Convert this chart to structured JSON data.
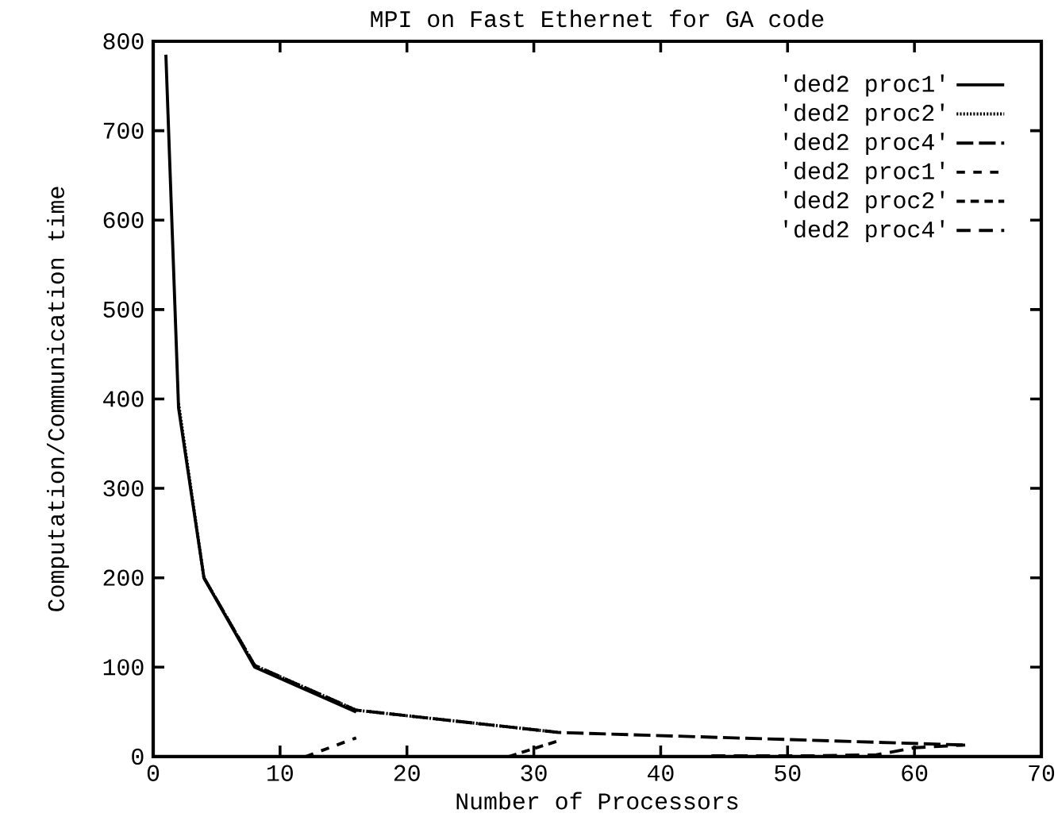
{
  "chart_data": {
    "type": "line",
    "title": "MPI on Fast Ethernet for GA code",
    "xlabel": "Number of Processors",
    "ylabel": "Computation/Communication time",
    "xlim": [
      0,
      70
    ],
    "xticks": [
      0,
      10,
      20,
      30,
      40,
      50,
      60,
      70
    ],
    "ylim": [
      0,
      800
    ],
    "yticks": [
      0,
      100,
      200,
      300,
      400,
      500,
      600,
      700,
      800
    ],
    "grid": false,
    "legend": "top right",
    "marker": "none",
    "series": [
      {
        "name": "'ded2 proc1'",
        "color": "#000000",
        "line_style": "solid",
        "x": [
          1,
          2,
          4,
          8,
          16
        ],
        "values": [
          785,
          390,
          200,
          100,
          50
        ]
      },
      {
        "name": "'ded2 proc2'",
        "color": "#000000",
        "line_style": "dotted",
        "x": [
          2,
          4,
          8,
          16,
          32
        ],
        "values": [
          395,
          200,
          102,
          52,
          27
        ]
      },
      {
        "name": "'ded2 proc4'",
        "color": "#000000",
        "line_style": "dashed",
        "x": [
          4,
          8,
          16,
          32,
          64
        ],
        "values": [
          200,
          102,
          52,
          27,
          13
        ]
      },
      {
        "name": "'ded2 proc1'",
        "color": "#000000",
        "line_style": "dashed",
        "x": [
          12,
          16
        ],
        "values": [
          0,
          21
        ]
      },
      {
        "name": "'ded2 proc2'",
        "color": "#000000",
        "line_style": "dashed",
        "x": [
          28,
          32
        ],
        "values": [
          0,
          18
        ]
      },
      {
        "name": "'ded2 proc4'",
        "color": "#000000",
        "line_style": "dashed",
        "x": [
          44,
          52,
          57,
          60,
          64
        ],
        "values": [
          1,
          1,
          2,
          10,
          13
        ]
      }
    ]
  }
}
